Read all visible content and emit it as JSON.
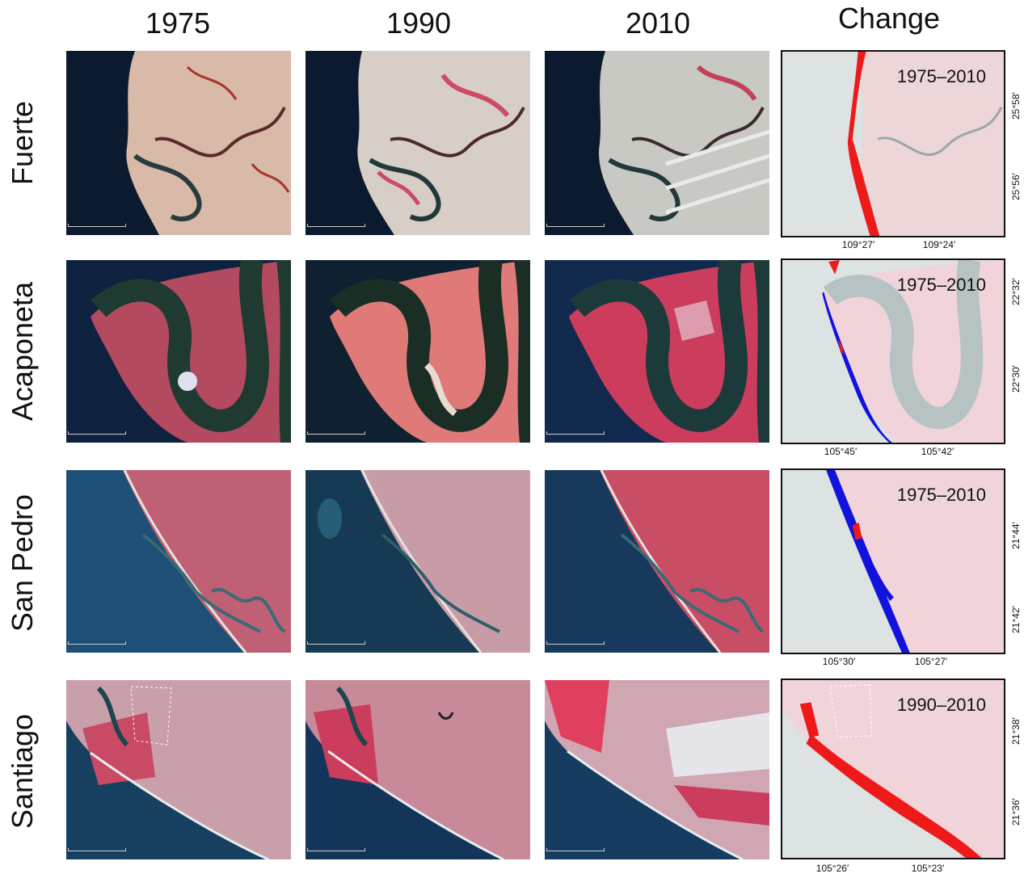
{
  "columns": [
    {
      "label": "1975"
    },
    {
      "label": "1990"
    },
    {
      "label": "2010"
    },
    {
      "label": "Change"
    }
  ],
  "rows": [
    {
      "label": "Fuerte",
      "period": "1975–2010",
      "lat_labels": [
        "25°58′",
        "25°56′"
      ],
      "lon_labels": [
        "109°27′",
        "109°24′"
      ]
    },
    {
      "label": "Acaponeta",
      "period": "1975–2010",
      "lat_labels": [
        "22°32′",
        "22°30′"
      ],
      "lon_labels": [
        "105°45′",
        "105°42′"
      ]
    },
    {
      "label": "San Pedro",
      "period": "1975–2010",
      "lat_labels": [
        "21°44′",
        "21°42′"
      ],
      "lon_labels": [
        "105°30′",
        "105°27′"
      ]
    },
    {
      "label": "Santiago",
      "period": "1990–2010",
      "lat_labels": [
        "21°38′",
        "21°36′"
      ],
      "lon_labels": [
        "105°26′",
        "105°23′"
      ]
    }
  ],
  "colors": {
    "sea_dark": "#0c1a30",
    "sea_blue": "#1c4f78",
    "land_red": "#c8546a",
    "land_light": "#d9b9b0",
    "river": "#1f3a3a",
    "change_bg": "#dde2e2",
    "change_land": "#ecc7cc",
    "erosion": "#ee1a1a",
    "accretion": "#1212dd"
  }
}
